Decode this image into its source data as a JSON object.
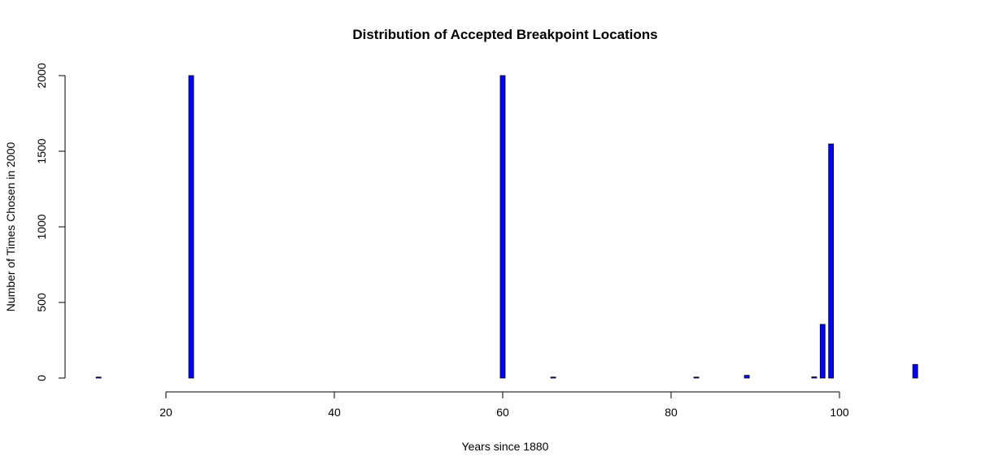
{
  "chart_data": {
    "type": "bar",
    "title": "Distribution of Accepted Breakpoint Locations",
    "xlabel": "Years since 1880",
    "ylabel": "Number of Times Chosen in 2000",
    "xlim": [
      12,
      109
    ],
    "ylim": [
      0,
      2000
    ],
    "x_ticks": [
      20,
      40,
      60,
      80,
      100
    ],
    "y_ticks": [
      0,
      500,
      1000,
      1500,
      2000
    ],
    "grid": false,
    "legend": "none",
    "bar_color": "#0000ff",
    "bar_border_color": "#000000",
    "points": [
      {
        "x": 12,
        "y": 2
      },
      {
        "x": 23,
        "y": 2000
      },
      {
        "x": 60,
        "y": 2000
      },
      {
        "x": 66,
        "y": 2
      },
      {
        "x": 83,
        "y": 3
      },
      {
        "x": 89,
        "y": 18
      },
      {
        "x": 97,
        "y": 8
      },
      {
        "x": 98,
        "y": 355
      },
      {
        "x": 99,
        "y": 1548
      },
      {
        "x": 109,
        "y": 90
      }
    ]
  }
}
